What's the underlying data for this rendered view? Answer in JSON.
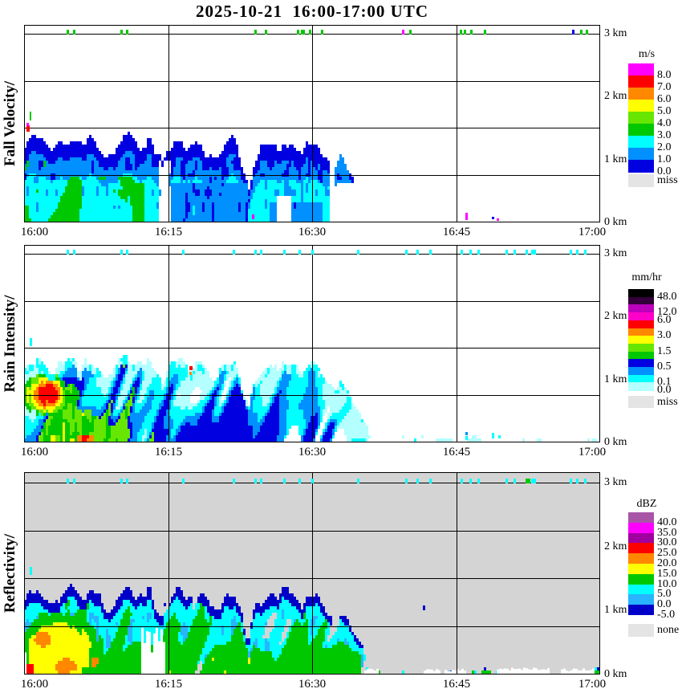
{
  "chart_data": {
    "type": "heatmap",
    "title": "2025-10-21  16:00-17:00 UTC",
    "x_axis": {
      "ticks": [
        "16:00",
        "16:15",
        "16:30",
        "16:45",
        "17:00"
      ],
      "tick_minutes": [
        0,
        15,
        30,
        45,
        60
      ]
    },
    "y_axis": {
      "labels": [
        "3 km",
        "2 km",
        "1 km",
        "0 km"
      ],
      "range_km": [
        0,
        3
      ]
    },
    "echo_top_profile_km": [
      [
        0,
        1.22
      ],
      [
        1,
        1.33
      ],
      [
        2,
        1.27
      ],
      [
        3,
        1.08
      ],
      [
        4,
        1.3
      ],
      [
        5,
        1.34
      ],
      [
        6,
        1.18
      ],
      [
        7,
        1.3
      ],
      [
        8,
        1.15
      ],
      [
        9,
        1.02
      ],
      [
        10,
        1.28
      ],
      [
        11,
        1.34
      ],
      [
        12,
        1.18
      ],
      [
        13,
        1.33
      ],
      [
        13.7,
        1.02
      ],
      [
        14.4,
        0.92
      ],
      [
        15,
        1.22
      ],
      [
        16,
        1.33
      ],
      [
        17,
        1.18
      ],
      [
        18,
        1.28
      ],
      [
        19,
        1.12
      ],
      [
        20,
        1.02
      ],
      [
        21,
        1.24
      ],
      [
        22,
        1.3
      ],
      [
        22.8,
        0.78
      ],
      [
        23.4,
        0.52
      ],
      [
        24,
        1.0
      ],
      [
        25,
        1.18
      ],
      [
        25.8,
        1.3
      ],
      [
        26.5,
        1.08
      ],
      [
        27,
        1.32
      ],
      [
        28,
        1.24
      ],
      [
        29,
        1.08
      ],
      [
        30,
        1.28
      ],
      [
        30.8,
        1.14
      ],
      [
        31.5,
        0.95
      ],
      [
        32.2,
        0.82
      ],
      [
        33,
        1.0
      ],
      [
        33.8,
        0.78
      ],
      [
        34.5,
        0.58
      ],
      [
        35.2,
        0.42
      ],
      [
        35.9,
        0.1
      ],
      [
        36.1,
        0
      ]
    ],
    "panels": [
      {
        "id": "fall-velocity",
        "ylabel": "Fall Velocity/",
        "style": "velocity",
        "bg": "#FFFFFF",
        "seed": 11,
        "field_colors": {
          "blue": "#0000E0",
          "medblue": "#0090FF",
          "cyan": "#00FFFF",
          "green": "#00C800"
        },
        "legend": {
          "title": "m/s",
          "bands": [
            {
              "c": "#FF00FF",
              "l": "8.0"
            },
            {
              "c": "#FF0000",
              "l": "7.0"
            },
            {
              "c": "#FF8800",
              "l": "6.0"
            },
            {
              "c": "#FFFF00",
              "l": "5.0"
            },
            {
              "c": "#66E600",
              "l": "4.0"
            },
            {
              "c": "#00C800",
              "l": "3.0"
            },
            {
              "c": "#00FFFF",
              "l": "2.0"
            },
            {
              "c": "#0090FF",
              "l": "1.0"
            },
            {
              "c": "#0000E0",
              "l": "0.0"
            }
          ],
          "missing": {
            "c": "#E4E4E4",
            "l": "miss"
          }
        },
        "dot_color": "#00C800",
        "dots": [
          {
            "m": 4.4
          },
          {
            "m": 5.1
          },
          {
            "m": 10.0
          },
          {
            "m": 10.6
          },
          {
            "m": 24.0
          },
          {
            "m": 25.1
          },
          {
            "m": 28.4
          },
          {
            "m": 28.8,
            "w": 5
          },
          {
            "m": 29.7
          },
          {
            "m": 30.9
          },
          {
            "m": 39.4,
            "c": "#FF00FF"
          },
          {
            "m": 40.1
          },
          {
            "m": 45.4
          },
          {
            "m": 45.8
          },
          {
            "m": 46.5
          },
          {
            "m": 47.9
          },
          {
            "m": 57.1,
            "c": "#0000E0"
          },
          {
            "m": 57.9
          },
          {
            "m": 58.5
          }
        ],
        "specks": [
          {
            "t": 0.25,
            "km": 1.44,
            "c": "#FF0000",
            "w": 4,
            "h": 8
          },
          {
            "t": 0.25,
            "km": 1.52,
            "c": "#FF00FF",
            "w": 3,
            "h": 4
          },
          {
            "t": 0.6,
            "km": 1.62,
            "c": "#00C800",
            "w": 2,
            "h": 11
          },
          {
            "t": 23.7,
            "km": 0.04,
            "c": "#FF00FF",
            "w": 3,
            "h": 6
          },
          {
            "t": 46.0,
            "km": 0.02,
            "c": "#FF00FF",
            "w": 3,
            "h": 9
          },
          {
            "t": 48.7,
            "km": 0.04,
            "c": "#0000E0",
            "w": 3,
            "h": 3
          },
          {
            "t": 49.2,
            "km": 0.01,
            "c": "#FF00FF",
            "w": 3,
            "h": 3
          }
        ]
      },
      {
        "id": "rain-intensity",
        "ylabel": "Rain Intensity/",
        "style": "rain",
        "bg": "#FFFFFF",
        "seed": 47,
        "field_colors": {
          "palecyan": "#B4FFFF",
          "cyan": "#00FFFF",
          "medblue": "#0090FF",
          "blue": "#0000E0",
          "green": "#00C800",
          "lgreen": "#66E600",
          "yellow": "#FFFF00",
          "orange": "#FF8800",
          "red": "#FF0000"
        },
        "legend": {
          "title": "mm/hr",
          "bands": [
            {
              "c": "#000000",
              "l": "48.0"
            },
            {
              "c": "#330039",
              "l": ""
            },
            {
              "c": "#BC00BC",
              "l": "12.0"
            },
            {
              "c": "#FF00C8",
              "l": "6.0"
            },
            {
              "c": "#FF0000",
              "l": ""
            },
            {
              "c": "#FF8800",
              "l": "3.0"
            },
            {
              "c": "#FFFF00",
              "l": ""
            },
            {
              "c": "#66E600",
              "l": "1.5"
            },
            {
              "c": "#00C800",
              "l": ""
            },
            {
              "c": "#0000E0",
              "l": "0.5"
            },
            {
              "c": "#0090FF",
              "l": ""
            },
            {
              "c": "#00FFFF",
              "l": "0.1"
            },
            {
              "c": "#B4FFFF",
              "l": "0.0"
            }
          ],
          "missing": {
            "c": "#E4E4E4",
            "l": "miss"
          }
        },
        "dot_color": "#00FFFF",
        "dots": [
          {
            "m": 4.4
          },
          {
            "m": 5.1
          },
          {
            "m": 10.0
          },
          {
            "m": 10.6
          },
          {
            "m": 16.5
          },
          {
            "m": 21.7
          },
          {
            "m": 24.0
          },
          {
            "m": 24.6
          },
          {
            "m": 27.0
          },
          {
            "m": 28.6
          },
          {
            "m": 29.9
          },
          {
            "m": 34.7
          },
          {
            "m": 39.7
          },
          {
            "m": 40.9
          },
          {
            "m": 42.2
          },
          {
            "m": 45.5
          },
          {
            "m": 46.4
          },
          {
            "m": 47.2
          },
          {
            "m": 50.1
          },
          {
            "m": 51.0
          },
          {
            "m": 52.2
          },
          {
            "m": 52.8,
            "w": 6
          },
          {
            "m": 56.8
          },
          {
            "m": 57.5
          },
          {
            "m": 58.3
          }
        ],
        "specks": [
          {
            "t": 0.6,
            "km": 1.52,
            "c": "#00FFFF",
            "w": 3,
            "h": 10
          },
          {
            "t": 17.2,
            "km": 1.14,
            "c": "#FF0000",
            "w": 4,
            "h": 5
          },
          {
            "t": 17.2,
            "km": 1.07,
            "c": "#FF8800",
            "w": 3,
            "h": 4
          },
          {
            "t": 46.0,
            "km": 0.1,
            "c": "#0090FF",
            "w": 3,
            "h": 4
          },
          {
            "t": 46.0,
            "km": 0.02,
            "c": "#00FFFF",
            "w": 3,
            "h": 5
          },
          {
            "t": 48.7,
            "km": 0.05,
            "c": "#00FFFF",
            "w": 3,
            "h": 7
          }
        ]
      },
      {
        "id": "reflectivity",
        "ylabel": "Reflectivity/",
        "style": "reflectivity",
        "bg": "#D4D4D4",
        "seed": 83,
        "field_colors": {
          "rim": "#0000C8",
          "cyan": "#00FFFF",
          "skyblue": "#28B4FF",
          "green": "#00C800",
          "yellow": "#FFFF00",
          "orange": "#FF8800",
          "red": "#FF0000",
          "miss": "#FFFFFF"
        },
        "legend": {
          "title": "dBZ",
          "bands": [
            {
              "c": "#A855A8",
              "l": "40.0"
            },
            {
              "c": "#FF00FF",
              "l": "35.0"
            },
            {
              "c": "#A000A0",
              "l": "30.0"
            },
            {
              "c": "#FF0000",
              "l": "25.0"
            },
            {
              "c": "#FF8800",
              "l": "20.0"
            },
            {
              "c": "#FFFF00",
              "l": "15.0"
            },
            {
              "c": "#00C800",
              "l": "10.0"
            },
            {
              "c": "#00FFFF",
              "l": "5.0"
            },
            {
              "c": "#28B4FF",
              "l": "0.0"
            },
            {
              "c": "#0000C8",
              "l": "-5.0"
            }
          ],
          "missing": {
            "c": "#E4E4E4",
            "l": "none"
          }
        },
        "dot_color": "#00FFFF",
        "dots": [
          {
            "m": 4.4
          },
          {
            "m": 5.1
          },
          {
            "m": 10.0
          },
          {
            "m": 10.6
          },
          {
            "m": 16.5
          },
          {
            "m": 21.7
          },
          {
            "m": 24.0
          },
          {
            "m": 24.6
          },
          {
            "m": 27.0
          },
          {
            "m": 28.6
          },
          {
            "m": 29.9
          },
          {
            "m": 34.7
          },
          {
            "m": 39.7
          },
          {
            "m": 40.9
          },
          {
            "m": 42.2
          },
          {
            "m": 45.5
          },
          {
            "m": 46.4
          },
          {
            "m": 47.2
          },
          {
            "m": 50.1
          },
          {
            "m": 51.0
          },
          {
            "m": 52.2,
            "c": "#00C800"
          },
          {
            "m": 52.5,
            "c": "#00C800"
          },
          {
            "m": 52.8,
            "w": 6
          },
          {
            "m": 56.8
          },
          {
            "m": 57.5
          },
          {
            "m": 58.3
          }
        ],
        "specks": [
          {
            "t": 0.6,
            "km": 1.55,
            "c": "#00FFFF",
            "w": 3,
            "h": 10
          },
          {
            "t": 41.5,
            "km": 1.0,
            "c": "#0000C8",
            "w": 3,
            "h": 6
          }
        ],
        "miss_patches": [
          [
            0,
            0.2,
            0,
            0.5
          ],
          [
            12.2,
            14.7,
            0,
            0.55
          ],
          [
            35.4,
            36.9,
            0,
            0.06
          ],
          [
            41.6,
            43.3,
            0,
            0.06
          ],
          [
            43.8,
            45.8,
            0,
            0.06
          ],
          [
            49.2,
            54.5,
            0,
            0.07
          ],
          [
            55.9,
            59.4,
            0,
            0.06
          ]
        ]
      }
    ]
  }
}
